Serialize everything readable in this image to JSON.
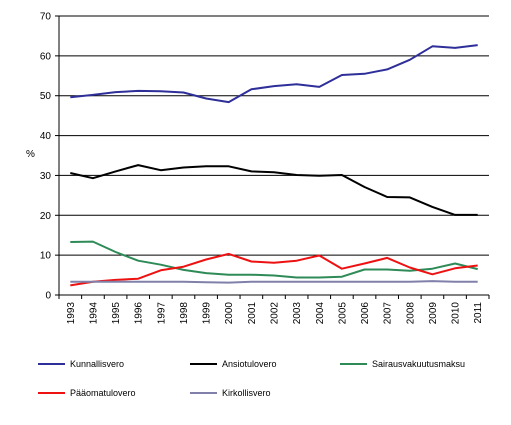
{
  "chart_data": {
    "type": "line",
    "ylabel": "%",
    "ylim": [
      0,
      70
    ],
    "yticks": [
      "0",
      "10",
      "20",
      "30",
      "40",
      "50",
      "60",
      "70"
    ],
    "categories": [
      "1993",
      "1994",
      "1995",
      "1996",
      "1997",
      "1998",
      "1999",
      "2000",
      "2001",
      "2002",
      "2003",
      "2004",
      "2005",
      "2006",
      "2007",
      "2008",
      "2009",
      "2010",
      "2011"
    ],
    "grid": "horizontal",
    "legend_position": "bottom",
    "series": [
      {
        "name": "Kunnallisvero",
        "color": "#2f2f9a",
        "values": [
          49.6,
          50.2,
          50.9,
          51.2,
          51.1,
          50.8,
          49.3,
          48.4,
          51.6,
          52.4,
          52.9,
          52.2,
          55.2,
          55.5,
          56.6,
          59.0,
          62.4,
          62.0,
          62.7
        ]
      },
      {
        "name": "Ansiotulovero",
        "color": "#000000",
        "values": [
          30.6,
          29.3,
          31.0,
          32.6,
          31.3,
          32.0,
          32.3,
          32.3,
          31.0,
          30.8,
          30.1,
          29.9,
          30.1,
          27.1,
          24.6,
          24.5,
          22.1,
          20.1,
          20.1
        ]
      },
      {
        "name": "Sairausvakuutusmaksu",
        "color": "#2e8b57",
        "values": [
          13.3,
          13.4,
          10.8,
          8.6,
          7.6,
          6.3,
          5.5,
          5.1,
          5.1,
          4.9,
          4.4,
          4.4,
          4.6,
          6.4,
          6.4,
          6.1,
          6.6,
          7.9,
          6.5
        ]
      },
      {
        "name": "Pääomatulovero",
        "color": "#ee1111",
        "values": [
          2.4,
          3.3,
          3.8,
          4.1,
          6.2,
          7.1,
          8.9,
          10.3,
          8.4,
          8.1,
          8.6,
          9.9,
          6.6,
          7.9,
          9.3,
          6.9,
          5.2,
          6.7,
          7.4
        ]
      },
      {
        "name": "Kirkollisvero",
        "color": "#8080aa",
        "values": [
          3.3,
          3.3,
          3.3,
          3.3,
          3.3,
          3.3,
          3.2,
          3.1,
          3.3,
          3.3,
          3.3,
          3.3,
          3.3,
          3.3,
          3.3,
          3.3,
          3.5,
          3.3,
          3.3
        ]
      }
    ]
  }
}
